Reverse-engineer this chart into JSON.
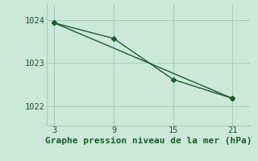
{
  "line1_x": [
    3,
    9,
    15,
    21
  ],
  "line1_y": [
    1023.93,
    1023.57,
    1022.62,
    1022.18
  ],
  "line2_x": [
    3,
    21
  ],
  "line2_y": [
    1023.93,
    1022.18
  ],
  "xlabel": "Graphe pression niveau de la mer (hPa)",
  "xticks": [
    3,
    9,
    15,
    21
  ],
  "yticks": [
    1022,
    1023,
    1024
  ],
  "ylim": [
    1021.55,
    1024.35
  ],
  "xlim": [
    2.2,
    22.8
  ],
  "line_color": "#1a5c2a",
  "marker": "D",
  "markersize": 3.0,
  "linewidth": 1.0,
  "bg_color": "#cce8d8",
  "grid_color": "#aac8b8",
  "xlabel_fontsize": 8,
  "tick_fontsize": 7.5
}
